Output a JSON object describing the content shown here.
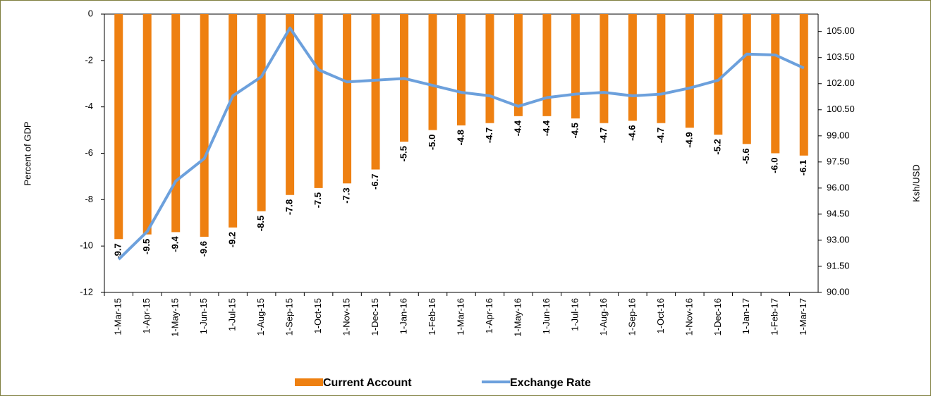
{
  "chart_data": {
    "type": "bar",
    "ylabel": "Percent of GDP",
    "y2label": "Ksh/USD",
    "categories": [
      "1-Mar-15",
      "1-Apr-15",
      "1-May-15",
      "1-Jun-15",
      "1-Jul-15",
      "1-Aug-15",
      "1-Sep-15",
      "1-Oct-15",
      "1-Nov-15",
      "1-Dec-15",
      "1-Jan-16",
      "1-Feb-16",
      "1-Mar-16",
      "1-Apr-16",
      "1-May-16",
      "1-Jun-16",
      "1-Jul-16",
      "1-Aug-16",
      "1-Sep-16",
      "1-Oct-16",
      "1-Nov-16",
      "1-Dec-16",
      "1-Jan-17",
      "1-Feb-17",
      "1-Mar-17"
    ],
    "series": [
      {
        "name": "Current Account",
        "type": "bar",
        "color": "#ee8011",
        "values": [
          -9.7,
          -9.5,
          -9.4,
          -9.6,
          -9.2,
          -8.5,
          -7.8,
          -7.5,
          -7.3,
          -6.7,
          -5.5,
          -5.0,
          -4.8,
          -4.7,
          -4.4,
          -4.4,
          -4.5,
          -4.7,
          -4.6,
          -4.7,
          -4.9,
          -5.2,
          -5.6,
          -6.0,
          -6.1
        ],
        "value_labels": [
          "-9.7",
          "-9.5",
          "-9.4",
          "-9.6",
          "-9.2",
          "-8.5",
          "-7.8",
          "-7.5",
          "-7.3",
          "-6.7",
          "-5.5",
          "-5.0",
          "-4.8",
          "-4.7",
          "-4.4",
          "-4.4",
          "-4.5",
          "-4.7",
          "-4.6",
          "-4.7",
          "-4.9",
          "-5.2",
          "-5.6",
          "-6.0",
          "-6.1"
        ]
      },
      {
        "name": "Exchange Rate",
        "type": "line",
        "axis": "y2",
        "color": "#6ca0dc",
        "values": [
          91.9,
          93.5,
          96.4,
          97.7,
          101.3,
          102.4,
          105.2,
          102.8,
          102.1,
          102.2,
          102.3,
          101.9,
          101.5,
          101.3,
          100.7,
          101.2,
          101.4,
          101.5,
          101.3,
          101.4,
          101.75,
          102.2,
          103.7,
          103.65,
          102.9
        ]
      }
    ],
    "ylim": [
      -12,
      0
    ],
    "yticks": [
      0,
      -2,
      -4,
      -6,
      -8,
      -10,
      -12
    ],
    "y2lim": [
      90,
      106
    ],
    "y2ticks": [
      {
        "value": 90,
        "label": "90.00"
      },
      {
        "value": 91.5,
        "label": "91.50"
      },
      {
        "value": 93,
        "label": "93.00"
      },
      {
        "value": 94.5,
        "label": "94.50"
      },
      {
        "value": 96,
        "label": "96.00"
      },
      {
        "value": 97.5,
        "label": "97.50"
      },
      {
        "value": 99,
        "label": "99.00"
      },
      {
        "value": 100.5,
        "label": "100.50"
      },
      {
        "value": 102,
        "label": "102.00"
      },
      {
        "value": 103.5,
        "label": "103.50"
      },
      {
        "value": 105,
        "label": "105.00"
      }
    ],
    "grid": false
  }
}
